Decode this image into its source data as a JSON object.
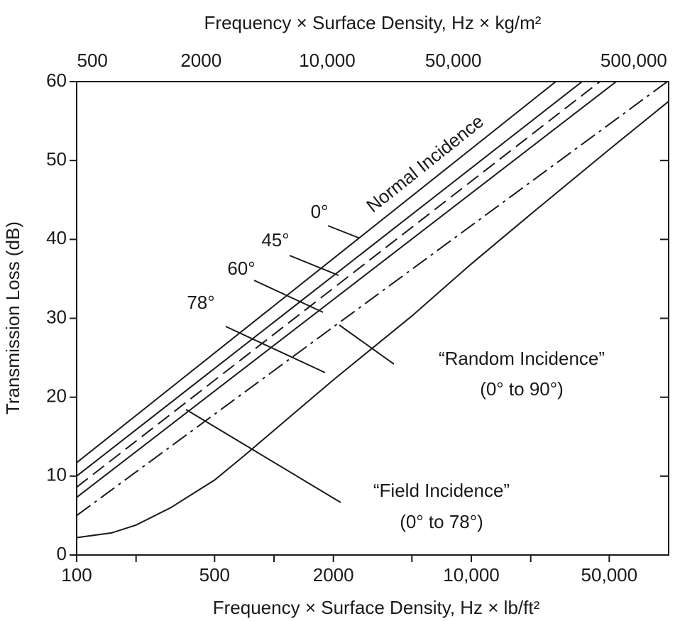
{
  "chart_data": {
    "type": "line",
    "xlabel": "Frequency × Surface Density, Hz × lb/ft²",
    "x2label": "Frequency × Surface Density, Hz × kg/m²",
    "ylabel": "Transmission Loss (dB)",
    "xscale": "log",
    "xlim": [
      100,
      100000
    ],
    "xticks": [
      100,
      500,
      2000,
      {
        "value": 10000,
        "label": "10,000"
      },
      {
        "value": 50000,
        "label": "50,000"
      }
    ],
    "xminorticks": [
      200,
      1000,
      5000,
      20000
    ],
    "x2scale": "log",
    "x2lim": [
      409,
      780000
    ],
    "x2ticks": [
      500,
      2000,
      {
        "value": 10000,
        "label": "10,000"
      },
      {
        "value": 50000,
        "label": "50,000"
      },
      {
        "value": 500000,
        "label": "500,000"
      }
    ],
    "ylim": [
      0,
      60
    ],
    "yticks": [
      0,
      10,
      20,
      30,
      40,
      50,
      60
    ],
    "grid": false,
    "series": [
      {
        "color": "#1a1a1a",
        "style": "solid",
        "x": [
          100,
          26800
        ],
        "values": [
          11.7,
          60
        ]
      },
      {
        "color": "#1a1a1a",
        "style": "solid",
        "x": [
          100,
          36400
        ],
        "values": [
          10.0,
          60
        ]
      },
      {
        "color": "#1a1a1a",
        "style": "dashed",
        "x": [
          100,
          44800
        ],
        "values": [
          8.6,
          60
        ]
      },
      {
        "color": "#1a1a1a",
        "style": "solid",
        "x": [
          100,
          54200
        ],
        "values": [
          7.3,
          60
        ]
      },
      {
        "color": "#1a1a1a",
        "style": "dashdot",
        "x": [
          100,
          98400
        ],
        "values": [
          5.0,
          60
        ]
      },
      {
        "color": "#1a1a1a",
        "style": "solid",
        "x": [
          100,
          150,
          200,
          300,
          500,
          700,
          1000,
          2000,
          5000,
          10000,
          20000,
          50000,
          100000
        ],
        "values": [
          2.2,
          2.8,
          3.8,
          6.0,
          9.5,
          12.5,
          15.8,
          22.2,
          30.3,
          36.9,
          43.2,
          51.4,
          57.5
        ]
      }
    ],
    "annotations": [
      {
        "text": "Normal Incidence"
      },
      {
        "text": "0°"
      },
      {
        "text": "45°"
      },
      {
        "text": "60°"
      },
      {
        "text": "78°"
      },
      {
        "text": "“Random Incidence”"
      },
      {
        "text": "(0° to 90°)"
      },
      {
        "text": "“Field Incidence”"
      },
      {
        "text": "(0° to 78°)"
      }
    ]
  }
}
